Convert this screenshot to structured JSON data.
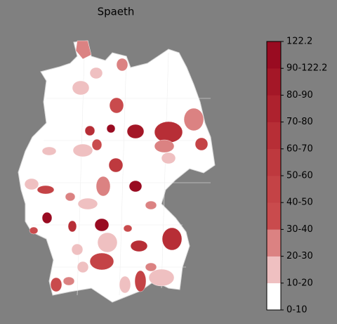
{
  "title": "Spaeth",
  "colorbar": {
    "ticks": [
      "0-10",
      "10-20",
      "20-30",
      "30-40",
      "40-50",
      "50-60",
      "60-70",
      "70-80",
      "80-90",
      "90-122.2",
      "122.2"
    ],
    "colors": [
      "#ffffff",
      "#efc0c1",
      "#db8282",
      "#c94b4d",
      "#c44346",
      "#be393e",
      "#b72e36",
      "#ae222e",
      "#a41727",
      "#990b21"
    ]
  }
}
